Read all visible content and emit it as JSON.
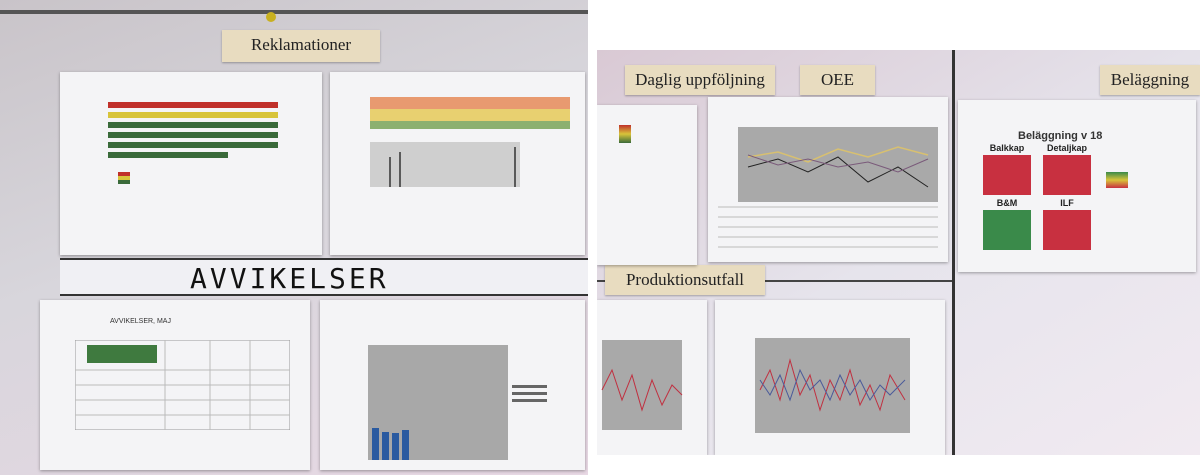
{
  "left_board": {
    "heading": "Reklamationer",
    "strip_text": "AVVIKELSER",
    "sheet_title": "AVVIKELSER, MAJ"
  },
  "right_board": {
    "labels": [
      "Daglig uppföljning",
      "OEE",
      "Beläggning",
      "Produktionsutfall"
    ],
    "occupancy": {
      "title": "Beläggning v 18",
      "boxes": [
        "Balkkap",
        "Detaljkap",
        "B&M",
        "ILF"
      ]
    }
  }
}
